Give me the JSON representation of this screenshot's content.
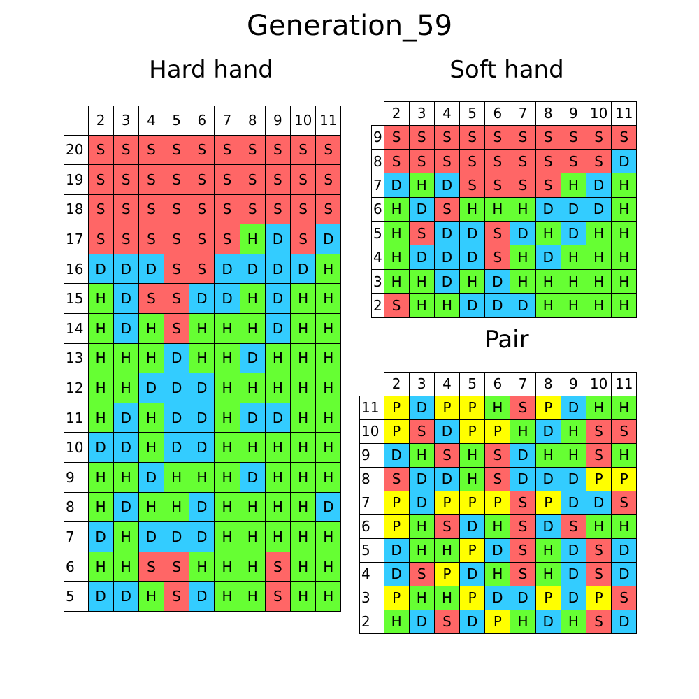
{
  "title": "Generation_59",
  "colors": {
    "S": "#ff6666",
    "H": "#66ff33",
    "D": "#33ccff",
    "P": "#ffff00"
  },
  "chart_data": [
    {
      "type": "table",
      "title": "Hard hand",
      "columns": [
        "2",
        "3",
        "4",
        "5",
        "6",
        "7",
        "8",
        "9",
        "10",
        "11"
      ],
      "rows": [
        "20",
        "19",
        "18",
        "17",
        "16",
        "15",
        "14",
        "13",
        "12",
        "11",
        "10",
        "9",
        "8",
        "7",
        "6",
        "5"
      ],
      "cells": [
        [
          "S",
          "S",
          "S",
          "S",
          "S",
          "S",
          "S",
          "S",
          "S",
          "S"
        ],
        [
          "S",
          "S",
          "S",
          "S",
          "S",
          "S",
          "S",
          "S",
          "S",
          "S"
        ],
        [
          "S",
          "S",
          "S",
          "S",
          "S",
          "S",
          "S",
          "S",
          "S",
          "S"
        ],
        [
          "S",
          "S",
          "S",
          "S",
          "S",
          "S",
          "H",
          "D",
          "S",
          "D"
        ],
        [
          "D",
          "D",
          "D",
          "S",
          "S",
          "D",
          "D",
          "D",
          "D",
          "H"
        ],
        [
          "H",
          "D",
          "S",
          "S",
          "D",
          "D",
          "H",
          "D",
          "H",
          "H"
        ],
        [
          "H",
          "D",
          "H",
          "S",
          "H",
          "H",
          "H",
          "D",
          "H",
          "H"
        ],
        [
          "H",
          "H",
          "H",
          "D",
          "H",
          "H",
          "D",
          "H",
          "H",
          "H"
        ],
        [
          "H",
          "H",
          "D",
          "D",
          "D",
          "H",
          "H",
          "H",
          "H",
          "H"
        ],
        [
          "H",
          "D",
          "H",
          "D",
          "D",
          "H",
          "D",
          "D",
          "H",
          "H"
        ],
        [
          "D",
          "D",
          "H",
          "D",
          "D",
          "H",
          "H",
          "H",
          "H",
          "H"
        ],
        [
          "H",
          "H",
          "D",
          "H",
          "H",
          "H",
          "D",
          "H",
          "H",
          "H"
        ],
        [
          "H",
          "D",
          "H",
          "H",
          "D",
          "H",
          "H",
          "H",
          "H",
          "D"
        ],
        [
          "D",
          "H",
          "D",
          "D",
          "D",
          "H",
          "H",
          "H",
          "H",
          "H"
        ],
        [
          "H",
          "H",
          "S",
          "S",
          "H",
          "H",
          "H",
          "S",
          "H",
          "H"
        ],
        [
          "D",
          "D",
          "H",
          "S",
          "D",
          "H",
          "H",
          "S",
          "H",
          "H"
        ]
      ]
    },
    {
      "type": "table",
      "title": "Soft hand",
      "columns": [
        "2",
        "3",
        "4",
        "5",
        "6",
        "7",
        "8",
        "9",
        "10",
        "11"
      ],
      "rows": [
        "9",
        "8",
        "7",
        "6",
        "5",
        "4",
        "3",
        "2"
      ],
      "cells": [
        [
          "S",
          "S",
          "S",
          "S",
          "S",
          "S",
          "S",
          "S",
          "S",
          "S"
        ],
        [
          "S",
          "S",
          "S",
          "S",
          "S",
          "S",
          "S",
          "S",
          "S",
          "D"
        ],
        [
          "D",
          "H",
          "D",
          "S",
          "S",
          "S",
          "S",
          "H",
          "D",
          "H"
        ],
        [
          "H",
          "D",
          "S",
          "H",
          "H",
          "H",
          "D",
          "D",
          "D",
          "H"
        ],
        [
          "H",
          "S",
          "D",
          "D",
          "S",
          "D",
          "H",
          "D",
          "H",
          "H"
        ],
        [
          "H",
          "D",
          "D",
          "D",
          "S",
          "H",
          "D",
          "H",
          "H",
          "H"
        ],
        [
          "H",
          "H",
          "D",
          "H",
          "D",
          "H",
          "H",
          "H",
          "H",
          "H"
        ],
        [
          "S",
          "H",
          "H",
          "D",
          "D",
          "D",
          "H",
          "H",
          "H",
          "H"
        ]
      ]
    },
    {
      "type": "table",
      "title": "Pair",
      "columns": [
        "2",
        "3",
        "4",
        "5",
        "6",
        "7",
        "8",
        "9",
        "10",
        "11"
      ],
      "rows": [
        "11",
        "10",
        "9",
        "8",
        "7",
        "6",
        "5",
        "4",
        "3",
        "2"
      ],
      "cells": [
        [
          "P",
          "D",
          "P",
          "P",
          "H",
          "S",
          "P",
          "D",
          "H",
          "H"
        ],
        [
          "P",
          "S",
          "D",
          "P",
          "P",
          "H",
          "D",
          "H",
          "S",
          "S"
        ],
        [
          "D",
          "H",
          "S",
          "H",
          "S",
          "D",
          "H",
          "H",
          "S",
          "H"
        ],
        [
          "S",
          "D",
          "D",
          "H",
          "S",
          "D",
          "D",
          "D",
          "P",
          "P"
        ],
        [
          "P",
          "D",
          "P",
          "P",
          "P",
          "S",
          "P",
          "D",
          "D",
          "S"
        ],
        [
          "P",
          "H",
          "S",
          "D",
          "H",
          "S",
          "D",
          "S",
          "H",
          "H"
        ],
        [
          "D",
          "H",
          "H",
          "P",
          "D",
          "S",
          "H",
          "D",
          "S",
          "D"
        ],
        [
          "D",
          "S",
          "P",
          "D",
          "H",
          "S",
          "H",
          "D",
          "S",
          "D"
        ],
        [
          "P",
          "H",
          "H",
          "P",
          "D",
          "D",
          "P",
          "D",
          "P",
          "S"
        ],
        [
          "H",
          "D",
          "S",
          "D",
          "P",
          "H",
          "D",
          "H",
          "S",
          "D"
        ]
      ]
    }
  ]
}
